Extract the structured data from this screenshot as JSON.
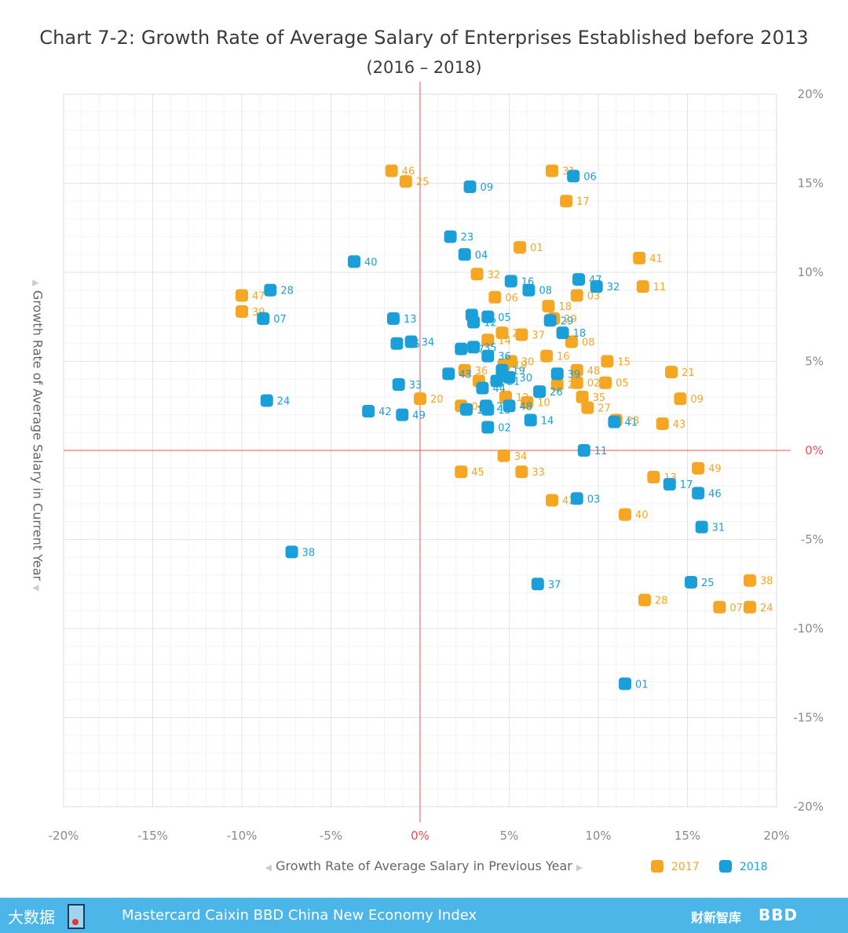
{
  "header": {
    "title": "Chart 7-2: Growth Rate of Average Salary of Enterprises Established before 2013",
    "subtitle": "(2016 – 2018)"
  },
  "colors": {
    "s2017": "#f5a623",
    "s2018": "#1a9fd9",
    "zero_line": "#e8504f",
    "grid_major": "#e3e3e3",
    "grid_minor": "#f3f3f3",
    "footer": "#4cb6e8"
  },
  "chart_data": {
    "type": "scatter",
    "xlabel": "Growth Rate of Average Salary in Previous Year",
    "ylabel": "Growth Rate of Average Salary in Current Year",
    "xlim": [
      -20,
      20
    ],
    "ylim": [
      -20,
      20
    ],
    "x_ticks": [
      "-20%",
      "-15%",
      "-10%",
      "-5%",
      "0%",
      "5%",
      "10%",
      "15%",
      "20%"
    ],
    "y_ticks": [
      "20%",
      "15%",
      "10%",
      "5%",
      "0%",
      "-5%",
      "-10%",
      "-15%",
      "-20%"
    ],
    "grid": true,
    "legend_position": "bottom-right",
    "series": [
      {
        "name": "2017",
        "points": [
          {
            "label": "46",
            "x": -1.6,
            "y": 15.7
          },
          {
            "label": "25",
            "x": -0.8,
            "y": 15.1
          },
          {
            "label": "31",
            "x": 7.4,
            "y": 15.7
          },
          {
            "label": "17",
            "x": 8.2,
            "y": 14.0
          },
          {
            "label": "01",
            "x": 5.6,
            "y": 11.4
          },
          {
            "label": "41",
            "x": 12.3,
            "y": 10.8
          },
          {
            "label": "32",
            "x": 3.2,
            "y": 9.9
          },
          {
            "label": "11",
            "x": 12.5,
            "y": 9.2
          },
          {
            "label": "47",
            "x": -10.0,
            "y": 8.7
          },
          {
            "label": "06",
            "x": 4.2,
            "y": 8.6
          },
          {
            "label": "03",
            "x": 8.8,
            "y": 8.7
          },
          {
            "label": "18",
            "x": 7.2,
            "y": 8.1
          },
          {
            "label": "39",
            "x": -10.0,
            "y": 7.8
          },
          {
            "label": "29",
            "x": 7.5,
            "y": 7.4
          },
          {
            "label": "26",
            "x": 4.6,
            "y": 6.6
          },
          {
            "label": "37",
            "x": 5.7,
            "y": 6.5
          },
          {
            "label": "14",
            "x": 3.8,
            "y": 6.2
          },
          {
            "label": "08",
            "x": 8.5,
            "y": 6.1
          },
          {
            "label": "19",
            "x": 4.7,
            "y": 4.8
          },
          {
            "label": "30",
            "x": 5.1,
            "y": 5.0
          },
          {
            "label": "16",
            "x": 7.1,
            "y": 5.3
          },
          {
            "label": "15",
            "x": 10.5,
            "y": 5.0
          },
          {
            "label": "36",
            "x": 2.5,
            "y": 4.5
          },
          {
            "label": "44",
            "x": 3.3,
            "y": 3.9
          },
          {
            "label": "48",
            "x": 8.8,
            "y": 4.5
          },
          {
            "label": "21",
            "x": 14.1,
            "y": 4.4
          },
          {
            "label": "22",
            "x": 7.7,
            "y": 3.7
          },
          {
            "label": "02",
            "x": 8.8,
            "y": 3.8
          },
          {
            "label": "05",
            "x": 10.4,
            "y": 3.8
          },
          {
            "label": "20",
            "x": 0.0,
            "y": 2.9
          },
          {
            "label": "12",
            "x": 4.8,
            "y": 3.0
          },
          {
            "label": "35",
            "x": 9.1,
            "y": 3.0
          },
          {
            "label": "09",
            "x": 14.6,
            "y": 2.9
          },
          {
            "label": "04",
            "x": 2.3,
            "y": 2.5
          },
          {
            "label": "10",
            "x": 6.0,
            "y": 2.7
          },
          {
            "label": "27",
            "x": 9.4,
            "y": 2.4
          },
          {
            "label": "23",
            "x": 11.0,
            "y": 1.7
          },
          {
            "label": "43",
            "x": 13.6,
            "y": 1.5
          },
          {
            "label": "34",
            "x": 4.7,
            "y": -0.3
          },
          {
            "label": "45",
            "x": 2.3,
            "y": -1.2
          },
          {
            "label": "33",
            "x": 5.7,
            "y": -1.2
          },
          {
            "label": "49",
            "x": 15.6,
            "y": -1.0
          },
          {
            "label": "13",
            "x": 13.1,
            "y": -1.5
          },
          {
            "label": "42",
            "x": 7.4,
            "y": -2.8
          },
          {
            "label": "40",
            "x": 11.5,
            "y": -3.6
          },
          {
            "label": "38",
            "x": 18.5,
            "y": -7.3
          },
          {
            "label": "28",
            "x": 12.6,
            "y": -8.4
          },
          {
            "label": "07",
            "x": 16.8,
            "y": -8.8
          },
          {
            "label": "24",
            "x": 18.5,
            "y": -8.8
          }
        ]
      },
      {
        "name": "2018",
        "points": [
          {
            "label": "06",
            "x": 8.6,
            "y": 15.4
          },
          {
            "label": "09",
            "x": 2.8,
            "y": 14.8
          },
          {
            "label": "23",
            "x": 1.7,
            "y": 12.0
          },
          {
            "label": "04",
            "x": 2.5,
            "y": 11.0
          },
          {
            "label": "40",
            "x": -3.7,
            "y": 10.6
          },
          {
            "label": "16",
            "x": 5.1,
            "y": 9.5
          },
          {
            "label": "47",
            "x": 8.9,
            "y": 9.6
          },
          {
            "label": "08",
            "x": 6.1,
            "y": 9.0
          },
          {
            "label": "32",
            "x": 9.9,
            "y": 9.2
          },
          {
            "label": "28",
            "x": -8.4,
            "y": 9.0
          },
          {
            "label": "07",
            "x": -8.8,
            "y": 7.4
          },
          {
            "label": "13",
            "x": -1.5,
            "y": 7.4
          },
          {
            "label": "20",
            "x": 2.9,
            "y": 7.6
          },
          {
            "label": "05",
            "x": 3.8,
            "y": 7.5
          },
          {
            "label": "12",
            "x": 3.0,
            "y": 7.2
          },
          {
            "label": "29",
            "x": 7.3,
            "y": 7.3
          },
          {
            "label": "18",
            "x": 8.0,
            "y": 6.6
          },
          {
            "label": "45",
            "x": -1.3,
            "y": 6.0
          },
          {
            "label": "34",
            "x": -0.5,
            "y": 6.1
          },
          {
            "label": "27",
            "x": 2.3,
            "y": 5.7
          },
          {
            "label": "35",
            "x": 3.0,
            "y": 5.8
          },
          {
            "label": "36",
            "x": 3.8,
            "y": 5.3
          },
          {
            "label": "19",
            "x": 4.6,
            "y": 4.5
          },
          {
            "label": "39",
            "x": 7.7,
            "y": 4.3
          },
          {
            "label": "43",
            "x": 1.6,
            "y": 4.3
          },
          {
            "label": "33",
            "x": -1.2,
            "y": 3.7
          },
          {
            "label": "21",
            "x": 4.3,
            "y": 3.9
          },
          {
            "label": "30",
            "x": 5.0,
            "y": 4.1
          },
          {
            "label": "44",
            "x": 3.5,
            "y": 3.5
          },
          {
            "label": "26",
            "x": 6.7,
            "y": 3.3
          },
          {
            "label": "24",
            "x": -8.6,
            "y": 2.8
          },
          {
            "label": "22",
            "x": 3.7,
            "y": 2.5
          },
          {
            "label": "48",
            "x": 5.0,
            "y": 2.5
          },
          {
            "label": "10",
            "x": 2.6,
            "y": 2.3
          },
          {
            "label": "42",
            "x": -2.9,
            "y": 2.2
          },
          {
            "label": "49",
            "x": -1.0,
            "y": 2.0
          },
          {
            "label": "15",
            "x": 3.8,
            "y": 2.3
          },
          {
            "label": "14",
            "x": 6.2,
            "y": 1.7
          },
          {
            "label": "41",
            "x": 10.9,
            "y": 1.6
          },
          {
            "label": "02",
            "x": 3.8,
            "y": 1.3
          },
          {
            "label": "11",
            "x": 9.2,
            "y": 0.0
          },
          {
            "label": "17",
            "x": 14.0,
            "y": -1.9
          },
          {
            "label": "46",
            "x": 15.6,
            "y": -2.4
          },
          {
            "label": "03",
            "x": 8.8,
            "y": -2.7
          },
          {
            "label": "31",
            "x": 15.8,
            "y": -4.3
          },
          {
            "label": "38",
            "x": -7.2,
            "y": -5.7
          },
          {
            "label": "37",
            "x": 6.6,
            "y": -7.5
          },
          {
            "label": "25",
            "x": 15.2,
            "y": -7.4
          },
          {
            "label": "01",
            "x": 11.5,
            "y": -13.1
          }
        ]
      }
    ]
  },
  "legend": {
    "label_2017": "2017",
    "label_2018": "2018"
  },
  "footer": {
    "left_brand": "大数据",
    "text": "Mastercard Caixin BBD China New Economy Index",
    "logo1": "财新智库",
    "logo2": "BBD"
  },
  "arrows": {
    "left": "◀",
    "right": "▶",
    "up": "▲",
    "down": "▼"
  }
}
